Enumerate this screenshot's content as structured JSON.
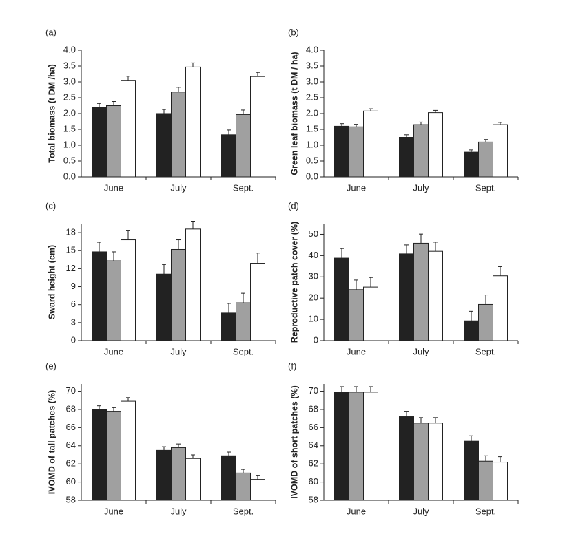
{
  "chart_data": [
    {
      "type": "bar",
      "panel_label": "(a)",
      "ylabel": "Total biomass (t DM /ha)",
      "categories": [
        "June",
        "July",
        "Sept."
      ],
      "series": [
        {
          "color": "#222222",
          "values": [
            2.2,
            2.0,
            1.33
          ],
          "errors": [
            0.12,
            0.13,
            0.15
          ]
        },
        {
          "color": "#a0a0a0",
          "values": [
            2.25,
            2.68,
            1.97
          ],
          "errors": [
            0.13,
            0.15,
            0.14
          ]
        },
        {
          "color": "#ffffff",
          "values": [
            3.05,
            3.47,
            3.17
          ],
          "errors": [
            0.13,
            0.13,
            0.13
          ]
        }
      ],
      "ylim": [
        0,
        4
      ],
      "yticks": [
        {
          "value": 0,
          "label": "0.0"
        },
        0.5,
        {
          "value": 1,
          "label": "1.0"
        },
        1.5,
        {
          "value": 2,
          "label": "2.0"
        },
        2.5,
        {
          "value": 3,
          "label": "3.0"
        },
        3.5,
        {
          "value": 4,
          "label": "4.0"
        }
      ]
    },
    {
      "type": "bar",
      "panel_label": "(b)",
      "ylabel": "Green leaf biomass (t DM / ha)",
      "categories": [
        "June",
        "July",
        "Sept."
      ],
      "series": [
        {
          "color": "#222222",
          "values": [
            1.6,
            1.25,
            0.78
          ],
          "errors": [
            0.08,
            0.08,
            0.07
          ]
        },
        {
          "color": "#a0a0a0",
          "values": [
            1.58,
            1.65,
            1.1
          ],
          "errors": [
            0.08,
            0.08,
            0.08
          ]
        },
        {
          "color": "#ffffff",
          "values": [
            2.08,
            2.03,
            1.65
          ],
          "errors": [
            0.07,
            0.07,
            0.07
          ]
        }
      ],
      "ylim": [
        0,
        4
      ],
      "yticks": [
        {
          "value": 0,
          "label": "0.0"
        },
        0.5,
        {
          "value": 1,
          "label": "1.0"
        },
        1.5,
        {
          "value": 2,
          "label": "2.0"
        },
        2.5,
        {
          "value": 3,
          "label": "3.0"
        },
        3.5,
        {
          "value": 4,
          "label": "4.0"
        }
      ]
    },
    {
      "type": "bar",
      "panel_label": "(c)",
      "ylabel": "Sward height (cm)",
      "categories": [
        "June",
        "July",
        "Sept."
      ],
      "series": [
        {
          "color": "#222222",
          "values": [
            14.8,
            11.1,
            4.6
          ],
          "errors": [
            1.6,
            1.6,
            1.6
          ]
        },
        {
          "color": "#a0a0a0",
          "values": [
            13.3,
            15.2,
            6.3
          ],
          "errors": [
            1.5,
            1.6,
            1.6
          ]
        },
        {
          "color": "#ffffff",
          "values": [
            16.8,
            18.6,
            12.9
          ],
          "errors": [
            1.6,
            1.3,
            1.7
          ]
        }
      ],
      "ylim": [
        0,
        19.5
      ],
      "yticks": [
        0,
        3,
        6,
        9,
        12,
        15,
        18
      ]
    },
    {
      "type": "bar",
      "panel_label": "(d)",
      "ylabel": "Reproductive patch cover (%)",
      "categories": [
        "June",
        "July",
        "Sept."
      ],
      "series": [
        {
          "color": "#222222",
          "values": [
            38.8,
            40.8,
            9.3
          ],
          "errors": [
            4.5,
            4.2,
            4.5
          ]
        },
        {
          "color": "#a0a0a0",
          "values": [
            24,
            45.8,
            17
          ],
          "errors": [
            4.5,
            4.3,
            4.5
          ]
        },
        {
          "color": "#ffffff",
          "values": [
            25.2,
            42,
            30.5
          ],
          "errors": [
            4.5,
            4.3,
            4.3
          ]
        }
      ],
      "ylim": [
        0,
        55
      ],
      "yticks": [
        0,
        10,
        20,
        30,
        40,
        50
      ]
    },
    {
      "type": "bar",
      "panel_label": "(e)",
      "ylabel": "IVOMD of tall patches (%)",
      "categories": [
        "June",
        "July",
        "Sept."
      ],
      "series": [
        {
          "color": "#222222",
          "values": [
            68.0,
            63.5,
            62.9
          ],
          "errors": [
            0.4,
            0.4,
            0.4
          ]
        },
        {
          "color": "#a0a0a0",
          "values": [
            67.8,
            63.8,
            61.0
          ],
          "errors": [
            0.4,
            0.4,
            0.4
          ]
        },
        {
          "color": "#ffffff",
          "values": [
            68.9,
            62.6,
            60.3
          ],
          "errors": [
            0.4,
            0.4,
            0.4
          ]
        }
      ],
      "ylim": [
        58,
        70.8
      ],
      "yticks": [
        58,
        60,
        62,
        64,
        66,
        68,
        70
      ]
    },
    {
      "type": "bar",
      "panel_label": "(f)",
      "ylabel": "IVOMD of short patches (%)",
      "categories": [
        "June",
        "July",
        "Sept."
      ],
      "series": [
        {
          "color": "#222222",
          "values": [
            69.9,
            67.2,
            64.5
          ],
          "errors": [
            0.6,
            0.6,
            0.6
          ]
        },
        {
          "color": "#a0a0a0",
          "values": [
            69.9,
            66.5,
            62.3
          ],
          "errors": [
            0.6,
            0.6,
            0.6
          ]
        },
        {
          "color": "#ffffff",
          "values": [
            69.9,
            66.5,
            62.2
          ],
          "errors": [
            0.6,
            0.6,
            0.6
          ]
        }
      ],
      "ylim": [
        58,
        70.8
      ],
      "yticks": [
        58,
        60,
        62,
        64,
        66,
        68,
        70
      ]
    }
  ]
}
